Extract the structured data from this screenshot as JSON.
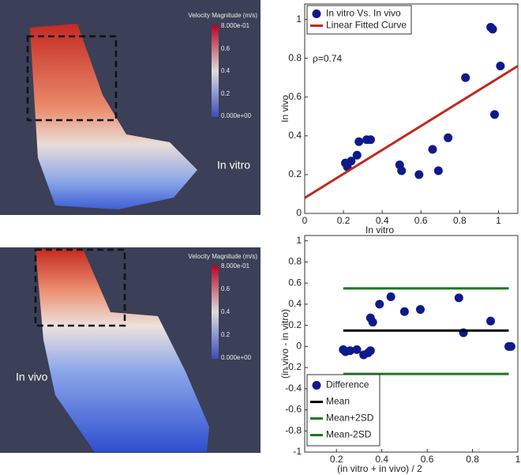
{
  "flow_panels": [
    {
      "label": "In vitro",
      "colorbar_title": "Velocity Magnitude (m/s)",
      "colorbar_labels": [
        "8.000e-01",
        "0.6",
        "0.4",
        "0.2",
        "0.000e+00"
      ]
    },
    {
      "label": "In vivo",
      "colorbar_title": "Velocity Magnitude (m/s)",
      "colorbar_labels": [
        "8.000e-01",
        "0.6",
        "0.4",
        "0.2",
        "0.000e+00"
      ]
    }
  ],
  "chart_data": [
    {
      "type": "scatter",
      "xlabel": "In vitro",
      "ylabel": "In vivo",
      "annotation": "ρ=0.74",
      "xlim": [
        0,
        1.1
      ],
      "ylim": [
        0,
        1.08
      ],
      "xticks": [
        0,
        0.2,
        0.4,
        0.6,
        0.8,
        1
      ],
      "yticks": [
        0,
        0.2,
        0.4,
        0.6,
        0.8,
        1
      ],
      "legend": "upper left",
      "series": [
        {
          "name": "In vitro Vs. In vivo",
          "mode": "markers",
          "color": "#0d1a8a",
          "x": [
            0.21,
            0.22,
            0.24,
            0.27,
            0.28,
            0.32,
            0.34,
            0.49,
            0.5,
            0.59,
            0.66,
            0.69,
            0.74,
            0.83,
            0.96,
            0.97,
            0.98,
            1.01
          ],
          "values": [
            0.26,
            0.24,
            0.27,
            0.3,
            0.37,
            0.38,
            0.38,
            0.25,
            0.22,
            0.2,
            0.33,
            0.22,
            0.39,
            0.7,
            0.96,
            0.95,
            0.51,
            0.76
          ]
        },
        {
          "name": "Linear Fitted Curve",
          "mode": "lines",
          "color": "#c0281e",
          "x": [
            0,
            1.1
          ],
          "values": [
            0.08,
            0.76
          ]
        }
      ]
    },
    {
      "type": "scatter",
      "xlabel": "(in vitro + in vivo) / 2",
      "ylabel": "(in vivo - in vitro)",
      "xlim": [
        0.06,
        1
      ],
      "ylim": [
        -1,
        1.05
      ],
      "xticks": [
        0.2,
        0.4,
        0.6,
        0.8,
        1
      ],
      "yticks": [
        -1,
        -0.8,
        -0.6,
        -0.4,
        -0.2,
        0,
        0.2,
        0.4,
        0.6,
        0.8,
        1
      ],
      "legend": "lower left",
      "series": [
        {
          "name": "Difference",
          "mode": "markers",
          "color": "#0d1a8a",
          "x": [
            0.23,
            0.24,
            0.26,
            0.29,
            0.32,
            0.34,
            0.35,
            0.35,
            0.36,
            0.39,
            0.44,
            0.5,
            0.57,
            0.74,
            0.76,
            0.88,
            0.96,
            0.97
          ],
          "values": [
            -0.03,
            -0.05,
            -0.04,
            -0.03,
            -0.08,
            -0.06,
            -0.04,
            0.27,
            0.23,
            0.4,
            0.47,
            0.33,
            0.35,
            0.46,
            0.13,
            0.24,
            0,
            0
          ]
        },
        {
          "name": "Mean",
          "mode": "lines",
          "color": "#000000",
          "x": [
            0.23,
            0.96
          ],
          "values": [
            0.15,
            0.15
          ]
        },
        {
          "name": "Mean+2SD",
          "mode": "lines",
          "color": "#1b7a1b",
          "x": [
            0.23,
            0.96
          ],
          "values": [
            0.55,
            0.55
          ]
        },
        {
          "name": "Mean-2SD",
          "mode": "lines",
          "color": "#1b7a1b",
          "x": [
            0.23,
            0.96
          ],
          "values": [
            -0.26,
            -0.26
          ]
        }
      ]
    }
  ]
}
